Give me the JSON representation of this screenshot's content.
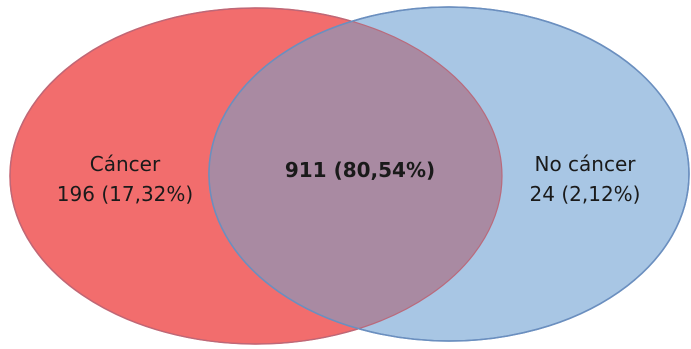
{
  "diagram": {
    "type": "venn",
    "colors": {
      "left": "#f26d6d",
      "right": "#a8c6e4",
      "overlap": "#a98aa2",
      "outline": "#6b8fbf"
    },
    "sets": {
      "left": {
        "name": "Cáncer",
        "value": "196 (17,32%)",
        "count": 196,
        "percent": 17.32
      },
      "overlap": {
        "value": "911 (80,54%)",
        "count": 911,
        "percent": 80.54
      },
      "right": {
        "name": "No cáncer",
        "value": "24 (2,12%)",
        "count": 24,
        "percent": 2.12
      }
    }
  }
}
